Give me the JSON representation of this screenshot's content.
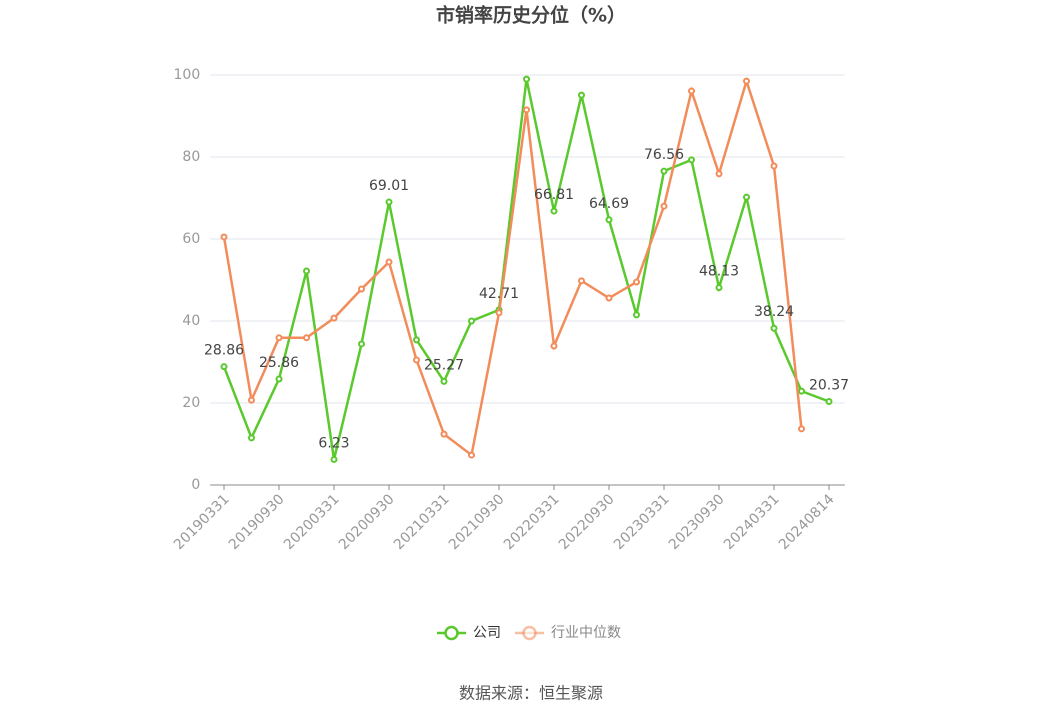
{
  "chart_data": {
    "type": "line",
    "title": "市销率历史分位（%）",
    "source": "数据来源：恒生聚源",
    "categories": [
      "20190331",
      null,
      "20190930",
      null,
      "20200331",
      null,
      "20200930",
      null,
      "20210331",
      null,
      "20210930",
      null,
      "20220331",
      null,
      "20220930",
      null,
      "20230331",
      null,
      "20230930",
      null,
      "20240331",
      null,
      "20240814"
    ],
    "series": [
      {
        "name": "公司",
        "color": "#5ac92d",
        "values": [
          28.86,
          11.5,
          25.86,
          52.2,
          6.23,
          34.4,
          69.01,
          35.4,
          25.27,
          40.0,
          42.71,
          99.0,
          66.81,
          95.1,
          64.69,
          41.5,
          76.56,
          79.3,
          48.13,
          70.2,
          38.24,
          22.9,
          20.37
        ],
        "value_labels": [
          "28.86",
          null,
          "25.86",
          null,
          "6.23",
          null,
          "69.01",
          null,
          "25.27",
          null,
          "42.71",
          null,
          "66.81",
          null,
          "64.69",
          null,
          "76.56",
          null,
          "48.13",
          null,
          "38.24",
          null,
          "20.37"
        ]
      },
      {
        "name": "行业中位数",
        "color": "#f28c5b",
        "values": [
          60.5,
          20.7,
          35.9,
          35.9,
          40.7,
          47.8,
          54.4,
          30.5,
          12.4,
          7.3,
          42.0,
          91.5,
          33.9,
          49.8,
          45.6,
          49.5,
          68.0,
          96.1,
          75.9,
          98.5,
          77.8,
          13.7,
          null
        ]
      }
    ],
    "ylim": [
      0,
      100
    ],
    "yticks": [
      0,
      20,
      40,
      60,
      80,
      100
    ],
    "grid": true
  }
}
